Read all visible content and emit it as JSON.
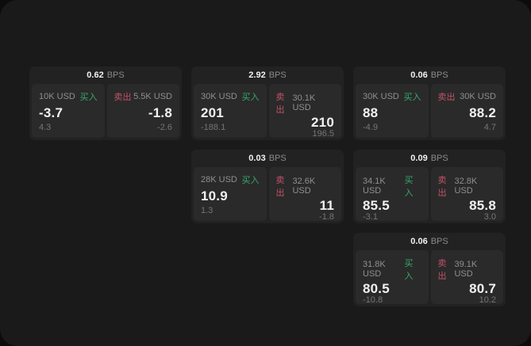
{
  "labels": {
    "bps": "BPS",
    "buy": "买入",
    "sell": "卖出"
  },
  "colors": {
    "buy": "#36a96c",
    "sell": "#c25168",
    "surface": "#1a1a1a",
    "card": "#222222",
    "panel": "#2a2a2a"
  },
  "cards": [
    {
      "bps": "0.62",
      "buy": {
        "amount": "10K USD",
        "price": "-3.7",
        "delta": "4.3"
      },
      "sell": {
        "amount": "5.5K USD",
        "price": "-1.8",
        "delta": "-2.6"
      }
    },
    {
      "bps": "2.92",
      "buy": {
        "amount": "30K USD",
        "price": "201",
        "delta": "-188.1"
      },
      "sell": {
        "amount": "30.1K USD",
        "price": "210",
        "delta": "196.5"
      }
    },
    {
      "bps": "0.06",
      "buy": {
        "amount": "30K USD",
        "price": "88",
        "delta": "-4.9"
      },
      "sell": {
        "amount": "30K USD",
        "price": "88.2",
        "delta": "4.7"
      }
    },
    {
      "bps": "0.03",
      "buy": {
        "amount": "28K USD",
        "price": "10.9",
        "delta": "1.3"
      },
      "sell": {
        "amount": "32.6K USD",
        "price": "11",
        "delta": "-1.8"
      }
    },
    {
      "bps": "0.09",
      "buy": {
        "amount": "34.1K USD",
        "price": "85.5",
        "delta": "-3.1"
      },
      "sell": {
        "amount": "32.8K USD",
        "price": "85.8",
        "delta": "3.0"
      }
    },
    {
      "bps": "0.06",
      "buy": {
        "amount": "31.8K USD",
        "price": "80.5",
        "delta": "-10.8"
      },
      "sell": {
        "amount": "39.1K USD",
        "price": "80.7",
        "delta": "10.2"
      }
    }
  ]
}
